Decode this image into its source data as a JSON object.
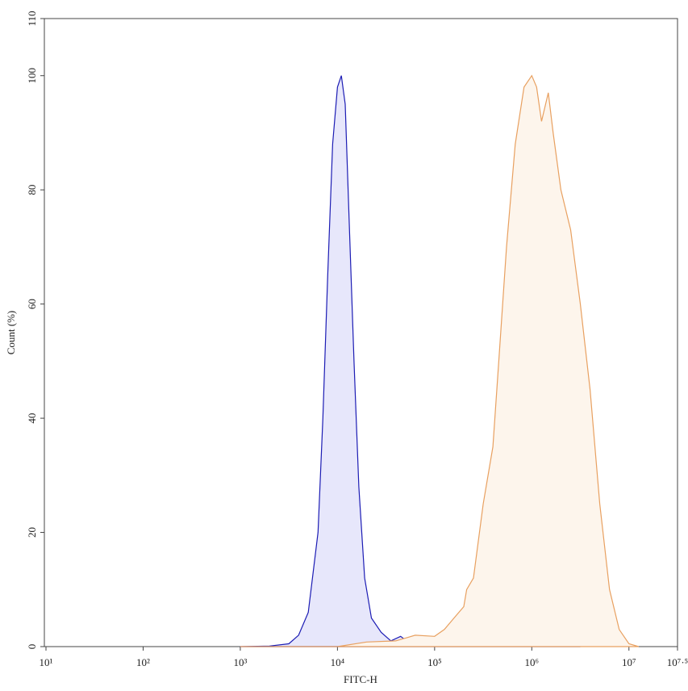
{
  "chart_data": {
    "type": "area",
    "xlabel": "FITC-H",
    "ylabel": "Count (%)",
    "xscale": "log",
    "xlim": [
      10,
      31622777
    ],
    "ylim": [
      0,
      110
    ],
    "xticks": [
      {
        "value": 10,
        "label": "10¹"
      },
      {
        "value": 100,
        "label": "10²"
      },
      {
        "value": 1000,
        "label": "10³"
      },
      {
        "value": 10000,
        "label": "10⁴"
      },
      {
        "value": 100000,
        "label": "10⁵"
      },
      {
        "value": 1000000,
        "label": "10⁶"
      },
      {
        "value": 10000000,
        "label": "10⁷"
      },
      {
        "value": 31622777,
        "label": "10⁷·⁵"
      }
    ],
    "yticks": [
      0,
      20,
      40,
      60,
      80,
      100,
      110
    ],
    "series": [
      {
        "color": "#1c1cb4",
        "fill": "#e7e7fb",
        "x": [
          1000,
          1995,
          3162,
          3981,
          5012,
          6310,
          7079,
          7943,
          8913,
          10000,
          10965,
          12023,
          13183,
          14791,
          16596,
          19055,
          22387,
          28184,
          35481,
          44668,
          52481,
          70795,
          158489,
          1000000,
          3162278
        ],
        "values": [
          0,
          0.1,
          0.5,
          2,
          6,
          20,
          40,
          65,
          88,
          98,
          100,
          95,
          75,
          50,
          28,
          12,
          5,
          2.5,
          1,
          1.8,
          0.9,
          0.4,
          0.2,
          0.05,
          0
        ]
      },
      {
        "color": "#e8a060",
        "fill": "#fdf5ec",
        "x": [
          1000,
          10000,
          19953,
          39811,
          63096,
          100000,
          125893,
          158489,
          199526,
          213796,
          251189,
          316228,
          398107,
          457088,
          549541,
          676083,
          831764,
          1000000,
          1122018,
          1258925,
          1479108,
          1659587,
          1995262,
          2511886,
          3162278,
          3981072,
          5011872,
          6309573,
          7943282,
          10000000,
          12589254
        ],
        "values": [
          0,
          0,
          0.8,
          1,
          2,
          1.8,
          3,
          5,
          7,
          10,
          12,
          25,
          35,
          50,
          70,
          88,
          98,
          100,
          98,
          92,
          97,
          90,
          80,
          73,
          60,
          45,
          25,
          10,
          3,
          0.5,
          0
        ]
      }
    ]
  }
}
